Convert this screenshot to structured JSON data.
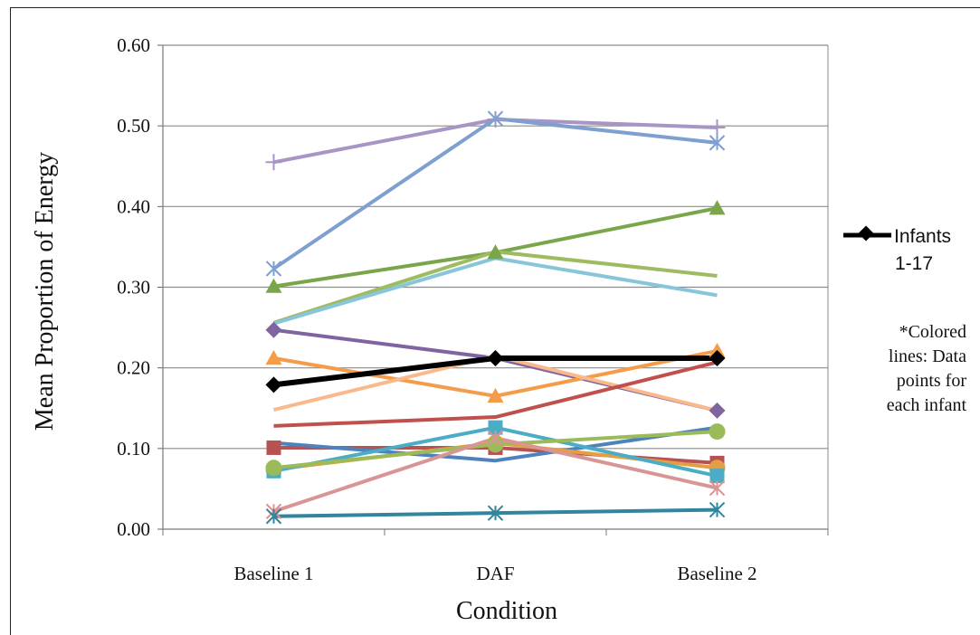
{
  "chart_data": {
    "type": "line",
    "title": "",
    "xlabel": "Condition",
    "ylabel": "Mean Proportion of Energy",
    "categories": [
      "Baseline 1",
      "DAF",
      "Baseline 2"
    ],
    "ylim": [
      0,
      0.6
    ],
    "yticks": [
      "0.00",
      "0.10",
      "0.20",
      "0.30",
      "0.40",
      "0.50",
      "0.60"
    ],
    "grid": true,
    "legend_position": "right",
    "legend": {
      "label_line1": "Infants",
      "label_line2": "1-17",
      "note_lines": [
        "*Colored",
        "lines: Data",
        "points for",
        "each infant"
      ]
    },
    "series": [
      {
        "name": "Infants 1-17",
        "color": "#000000",
        "marker": "diamond",
        "values": [
          0.179,
          0.212,
          0.212
        ]
      },
      {
        "color": "#A895C5",
        "marker": "plus",
        "values": [
          0.455,
          0.508,
          0.498
        ]
      },
      {
        "color": "#7F9FD1",
        "marker": "x",
        "values": [
          0.323,
          0.509,
          0.479
        ]
      },
      {
        "color": "#7AA54A",
        "marker": "triangle",
        "values": [
          0.301,
          0.343,
          0.398
        ]
      },
      {
        "color": "#9DBB61",
        "marker": "none",
        "values": [
          0.256,
          0.344,
          0.314
        ]
      },
      {
        "color": "#88C5D9",
        "marker": "none",
        "values": [
          0.255,
          0.336,
          0.29
        ]
      },
      {
        "color": "#8064A2",
        "marker": "diamond",
        "values": [
          0.247,
          0.212,
          0.147
        ]
      },
      {
        "color": "#F59C4A",
        "marker": "triangle",
        "values": [
          0.212,
          0.165,
          0.221
        ]
      },
      {
        "color": "#FAB98A",
        "marker": "none",
        "values": [
          0.148,
          0.215,
          0.147
        ]
      },
      {
        "color": "#C0504D",
        "marker": "none",
        "values": [
          0.128,
          0.139,
          0.207
        ]
      },
      {
        "color": "#B65252",
        "marker": "square",
        "values": [
          0.101,
          0.101,
          0.082
        ]
      },
      {
        "color": "#4F81BD",
        "marker": "none",
        "values": [
          0.107,
          0.085,
          0.126
        ]
      },
      {
        "color": "#E39F42",
        "marker": "circle",
        "values": [
          0.074,
          0.107,
          0.076
        ]
      },
      {
        "color": "#4BACC6",
        "marker": "square",
        "values": [
          0.072,
          0.126,
          0.066
        ]
      },
      {
        "color": "#9BBB59",
        "marker": "circle",
        "values": [
          0.076,
          0.105,
          0.121
        ]
      },
      {
        "color": "#D99594",
        "marker": "x",
        "values": [
          0.022,
          0.113,
          0.051
        ]
      },
      {
        "color": "#31859C",
        "marker": "x",
        "values": [
          0.016,
          0.02,
          0.024
        ]
      }
    ]
  }
}
